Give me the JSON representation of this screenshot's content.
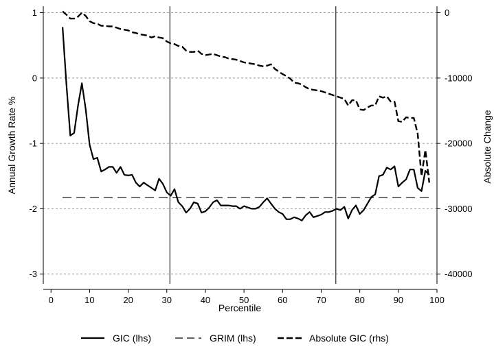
{
  "chart_data": {
    "type": "line",
    "title": "",
    "xlabel": "Percentile",
    "ylabel_left": "Annual Growth Rate %",
    "ylabel_right": "Absolute Change",
    "xlim": [
      -2,
      100
    ],
    "ylim_left": [
      -3.15,
      1.1
    ],
    "ylim_right": [
      -41500,
      1000
    ],
    "xticks": [
      "0",
      "10",
      "20",
      "30",
      "40",
      "50",
      "60",
      "70",
      "80",
      "90",
      "100"
    ],
    "yticks_left": [
      "1",
      "0",
      "-1",
      "-2",
      "-3"
    ],
    "yticks_right": [
      "0",
      "-10000",
      "-20000",
      "-30000",
      "-40000"
    ],
    "grid": "horizontal dashed at right-axis ticks",
    "vertical_lines": [
      30.8,
      73.8
    ],
    "legend_position": "bottom",
    "series": [
      {
        "name": "GIC (lhs)",
        "axis": "left",
        "style": "solid",
        "x": [
          3,
          4,
          5,
          6,
          7,
          8,
          9,
          10,
          11,
          12,
          13,
          14,
          15,
          16,
          17,
          18,
          19,
          20,
          21,
          22,
          23,
          24,
          25,
          26,
          27,
          28,
          29,
          30,
          31,
          32,
          33,
          34,
          35,
          36,
          37,
          38,
          39,
          40,
          41,
          42,
          43,
          44,
          45,
          46,
          47,
          48,
          49,
          50,
          51,
          52,
          53,
          54,
          55,
          56,
          57,
          58,
          59,
          60,
          61,
          62,
          63,
          64,
          65,
          66,
          67,
          68,
          69,
          70,
          71,
          72,
          73,
          74,
          75,
          76,
          77,
          78,
          79,
          80,
          81,
          82,
          83,
          84,
          85,
          86,
          87,
          88,
          89,
          90,
          91,
          92,
          93,
          94,
          95,
          96,
          97,
          98
        ],
        "values": [
          0.78,
          -0.1,
          -0.88,
          -0.84,
          -0.42,
          -0.08,
          -0.48,
          -1.02,
          -1.24,
          -1.22,
          -1.43,
          -1.4,
          -1.36,
          -1.36,
          -1.45,
          -1.36,
          -1.48,
          -1.49,
          -1.48,
          -1.6,
          -1.66,
          -1.6,
          -1.64,
          -1.68,
          -1.72,
          -1.54,
          -1.62,
          -1.75,
          -1.8,
          -1.7,
          -1.9,
          -1.96,
          -2.06,
          -2.0,
          -1.9,
          -1.92,
          -2.06,
          -2.04,
          -1.98,
          -1.9,
          -1.87,
          -1.95,
          -1.95,
          -1.95,
          -1.96,
          -1.96,
          -2.0,
          -1.96,
          -1.98,
          -2.0,
          -2.0,
          -1.97,
          -1.9,
          -1.84,
          -1.92,
          -2.0,
          -2.05,
          -2.08,
          -2.16,
          -2.16,
          -2.13,
          -2.15,
          -2.18,
          -2.1,
          -2.05,
          -2.13,
          -2.11,
          -2.09,
          -2.05,
          -2.05,
          -2.03,
          -2.0,
          -2.02,
          -1.97,
          -2.15,
          -2.02,
          -1.95,
          -2.08,
          -2.02,
          -1.92,
          -1.82,
          -1.78,
          -1.5,
          -1.48,
          -1.37,
          -1.4,
          -1.35,
          -1.66,
          -1.6,
          -1.55,
          -1.4,
          -1.4,
          -1.68,
          -1.73,
          -1.42,
          -1.48
        ]
      },
      {
        "name": "GRIM (lhs)",
        "axis": "left",
        "style": "long-dash",
        "x": [
          3,
          98
        ],
        "values": [
          -1.83,
          -1.83
        ]
      },
      {
        "name": "Absolute GIC (rhs)",
        "axis": "right",
        "style": "bold-dash",
        "x": [
          3,
          4,
          5,
          6,
          7,
          8,
          9,
          10,
          11,
          12,
          13,
          14,
          15,
          16,
          17,
          18,
          19,
          20,
          21,
          22,
          23,
          24,
          25,
          26,
          27,
          28,
          29,
          30,
          31,
          32,
          33,
          34,
          35,
          36,
          37,
          38,
          39,
          40,
          41,
          42,
          43,
          44,
          45,
          46,
          47,
          48,
          49,
          50,
          51,
          52,
          53,
          54,
          55,
          56,
          57,
          58,
          59,
          60,
          61,
          62,
          63,
          64,
          65,
          66,
          67,
          68,
          69,
          70,
          71,
          72,
          73,
          74,
          75,
          76,
          77,
          78,
          79,
          80,
          81,
          82,
          83,
          84,
          85,
          86,
          87,
          88,
          89,
          90,
          91,
          92,
          93,
          94,
          95,
          96,
          97,
          98
        ],
        "values": [
          200,
          -300,
          -900,
          -900,
          -600,
          0,
          -500,
          -1300,
          -1600,
          -1700,
          -2000,
          -2000,
          -2100,
          -2100,
          -2300,
          -2500,
          -2600,
          -2700,
          -3000,
          -3100,
          -3300,
          -3400,
          -3500,
          -3800,
          -3600,
          -3800,
          -3900,
          -4400,
          -4700,
          -4800,
          -5100,
          -5200,
          -5800,
          -6000,
          -6000,
          -5800,
          -6300,
          -6500,
          -6400,
          -6300,
          -6500,
          -6700,
          -6800,
          -7000,
          -7100,
          -7200,
          -7400,
          -7600,
          -7700,
          -7800,
          -7900,
          -8100,
          -8200,
          -8100,
          -7900,
          -8600,
          -9000,
          -9400,
          -9700,
          -10100,
          -10700,
          -10800,
          -11000,
          -11400,
          -11700,
          -11800,
          -11900,
          -12000,
          -12200,
          -12400,
          -12600,
          -12800,
          -13000,
          -13200,
          -14200,
          -13400,
          -13400,
          -14800,
          -14900,
          -14500,
          -14200,
          -14200,
          -12800,
          -13000,
          -12800,
          -13600,
          -13600,
          -16600,
          -16700,
          -16000,
          -16100,
          -16100,
          -18500,
          -25000,
          -21000,
          -26000
        ]
      }
    ]
  }
}
